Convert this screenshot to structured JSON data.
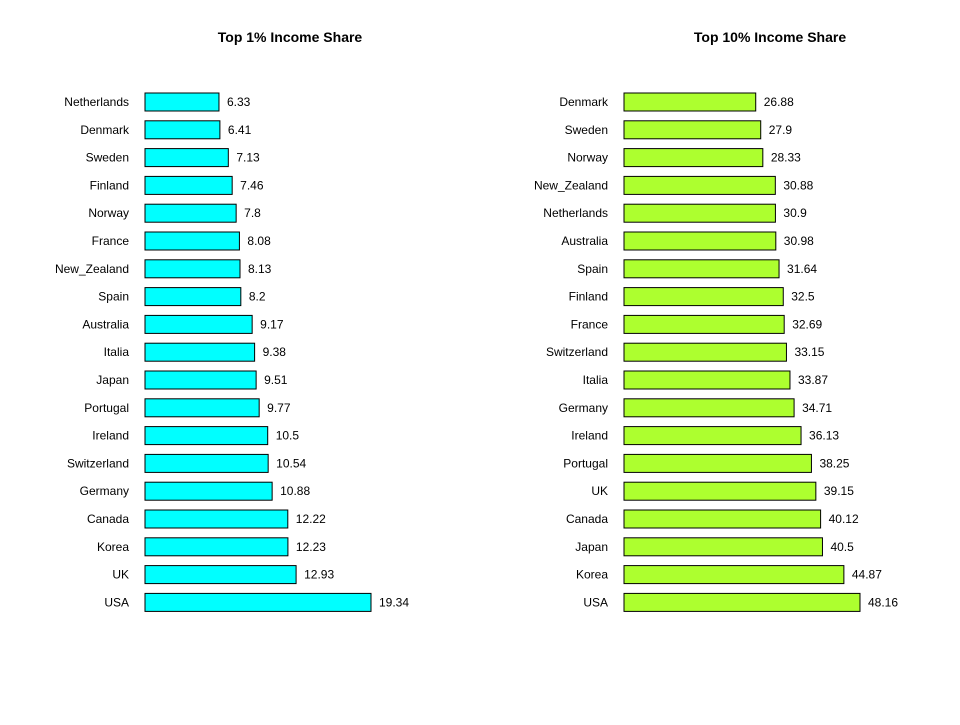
{
  "chart_data": [
    {
      "type": "bar",
      "orientation": "horizontal",
      "title": "Top 1% Income Share",
      "categories": [
        "Netherlands",
        "Denmark",
        "Sweden",
        "Finland",
        "Norway",
        "France",
        "New_Zealand",
        "Spain",
        "Australia",
        "Italia",
        "Japan",
        "Portugal",
        "Ireland",
        "Switzerland",
        "Germany",
        "Canada",
        "Korea",
        "UK",
        "USA"
      ],
      "values": [
        6.33,
        6.41,
        7.13,
        7.46,
        7.8,
        8.08,
        8.13,
        8.2,
        9.17,
        9.38,
        9.51,
        9.77,
        10.5,
        10.54,
        10.88,
        12.22,
        12.23,
        12.93,
        19.34
      ],
      "value_labels": [
        "6.33",
        "6.41",
        "7.13",
        "7.46",
        "7.8",
        "8.08",
        "8.13",
        "8.2",
        "9.17",
        "9.38",
        "9.51",
        "9.77",
        "10.5",
        "10.54",
        "10.88",
        "12.22",
        "12.23",
        "12.93",
        "19.34"
      ],
      "bar_color": "#00ffff",
      "xlim": [
        0,
        19.34
      ],
      "grid": false
    },
    {
      "type": "bar",
      "orientation": "horizontal",
      "title": "Top 10% Income Share",
      "categories": [
        "Denmark",
        "Sweden",
        "Norway",
        "New_Zealand",
        "Netherlands",
        "Australia",
        "Spain",
        "Finland",
        "France",
        "Switzerland",
        "Italia",
        "Germany",
        "Ireland",
        "Portugal",
        "UK",
        "Canada",
        "Japan",
        "Korea",
        "USA"
      ],
      "values": [
        26.88,
        27.9,
        28.33,
        30.88,
        30.9,
        30.98,
        31.64,
        32.5,
        32.69,
        33.15,
        33.87,
        34.71,
        36.13,
        38.25,
        39.15,
        40.12,
        40.5,
        44.87,
        48.16
      ],
      "value_labels": [
        "26.88",
        "27.9",
        "28.33",
        "30.88",
        "30.9",
        "30.98",
        "31.64",
        "32.5",
        "32.69",
        "33.15",
        "33.87",
        "34.71",
        "36.13",
        "38.25",
        "39.15",
        "40.12",
        "40.5",
        "44.87",
        "48.16"
      ],
      "bar_color": "#adff2f",
      "xlim": [
        0,
        48.16
      ],
      "grid": false
    }
  ]
}
